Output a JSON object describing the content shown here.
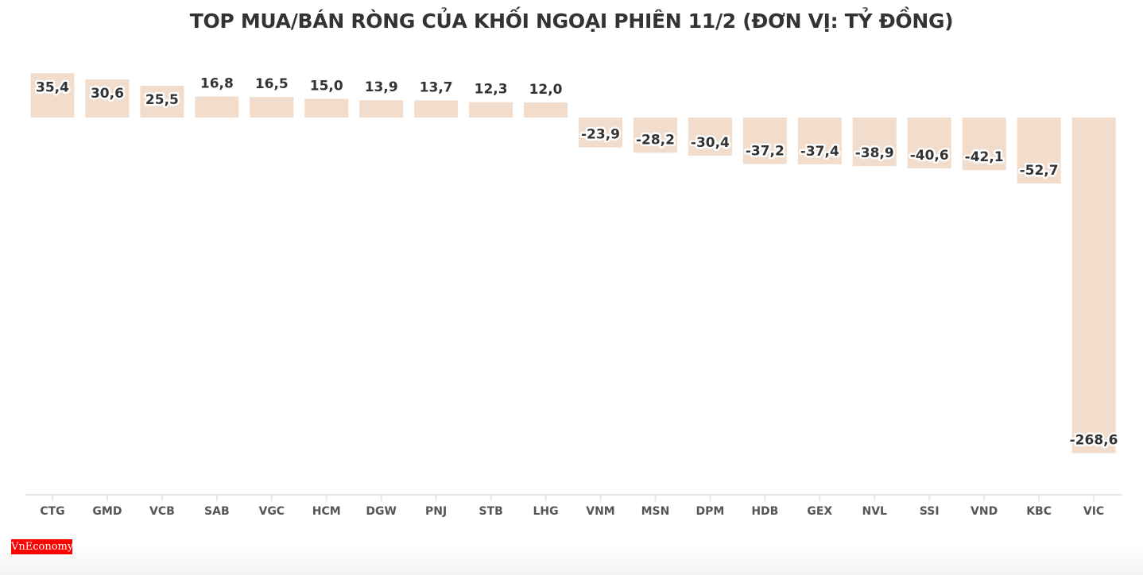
{
  "chart_data": {
    "type": "bar",
    "title": "TOP MUA/BÁN RÒNG CỦA KHỐI NGOẠI PHIÊN 11/2 (ĐƠN VỊ: TỶ ĐỒNG)",
    "categories": [
      "CTG",
      "GMD",
      "VCB",
      "SAB",
      "VGC",
      "HCM",
      "DGW",
      "PNJ",
      "STB",
      "LHG",
      "VNM",
      "MSN",
      "DPM",
      "HDB",
      "GEX",
      "NVL",
      "SSI",
      "VND",
      "KBC",
      "VIC"
    ],
    "values": [
      35.4,
      30.6,
      25.5,
      16.8,
      16.5,
      15.0,
      13.9,
      13.7,
      12.3,
      12.0,
      -23.9,
      -28.2,
      -30.4,
      -37.2,
      -37.4,
      -38.9,
      -40.6,
      -42.1,
      -52.7,
      -268.6
    ],
    "labels": [
      "35,4",
      "30,6",
      "25,5",
      "16,8",
      "16,5",
      "15,0",
      "13,9",
      "13,7",
      "12,3",
      "12,0",
      "-23,9",
      "-28,2",
      "-30,4",
      "-37,2",
      "-37,4",
      "-38,9",
      "-40,6",
      "-42,1",
      "-52,7",
      "-268,6"
    ],
    "xlabel": "",
    "ylabel": "",
    "grid": false,
    "bar_color": "#f2dccb"
  },
  "logo": "VnEconomy"
}
